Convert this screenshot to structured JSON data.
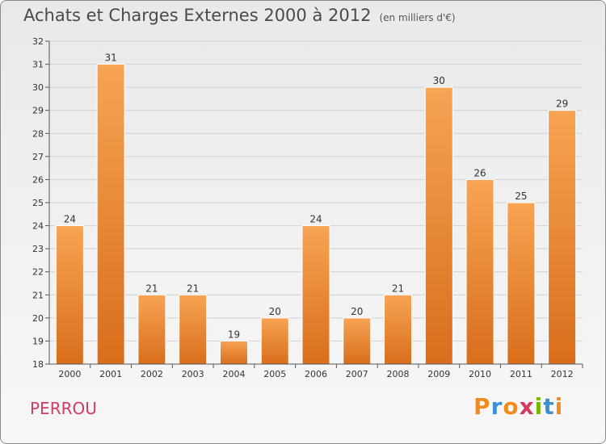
{
  "header": {
    "title": "Achats et Charges Externes 2000 à 2012",
    "unit": "(en milliers d'€)"
  },
  "footer": {
    "commune": "PERROU",
    "logo_letters": [
      "P",
      "r",
      "o",
      "x",
      "i",
      "t",
      "i"
    ],
    "logo_colors": [
      "#f28a1e",
      "#3b8fd6",
      "#f28a1e",
      "#d23a63",
      "#7ab800",
      "#3b8fd6",
      "#f28a1e"
    ]
  },
  "colors": {
    "bar_top": "#f7a454",
    "bar_bottom": "#d86e1c",
    "axis": "#555555",
    "grid": "#d0d0d0",
    "text": "#333333"
  },
  "chart_data": {
    "type": "bar",
    "categories": [
      "2000",
      "2001",
      "2002",
      "2003",
      "2004",
      "2005",
      "2006",
      "2007",
      "2008",
      "2009",
      "2010",
      "2011",
      "2012"
    ],
    "values": [
      24,
      31,
      21,
      21,
      19,
      20,
      24,
      20,
      21,
      30,
      26,
      25,
      29
    ],
    "data_labels": [
      "24",
      "31",
      "21",
      "21",
      "19",
      "20",
      "24",
      "20",
      "21",
      "30",
      "26",
      "25",
      "29"
    ],
    "y_ticks": [
      18,
      19,
      20,
      21,
      22,
      23,
      24,
      25,
      26,
      27,
      28,
      29,
      30,
      31,
      32
    ],
    "ylim": [
      18,
      32
    ],
    "grid": true
  }
}
